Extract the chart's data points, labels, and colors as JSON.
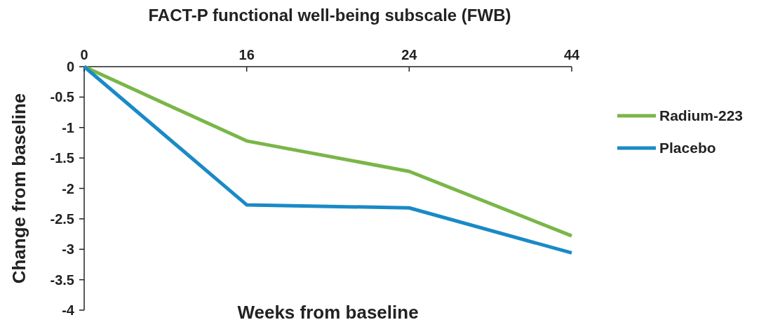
{
  "chart_data": {
    "type": "line",
    "title": "FACT-P functional well-being subscale (FWB)",
    "xlabel": "Weeks from baseline",
    "ylabel": "Change from baseline",
    "categories": [
      "0",
      "16",
      "24",
      "44"
    ],
    "series": [
      {
        "name": "Radium-223",
        "color": "#7ab648",
        "values": [
          0,
          -1.22,
          -1.72,
          -2.78
        ]
      },
      {
        "name": "Placebo",
        "color": "#1a8ac6",
        "values": [
          0,
          -2.27,
          -2.32,
          -3.06
        ]
      }
    ],
    "ylim": [
      -4,
      0
    ],
    "yticks": [
      0,
      -0.5,
      -1,
      -1.5,
      -2,
      -2.5,
      -3,
      -3.5,
      -4
    ],
    "grid": false,
    "legend": "right",
    "marker": "none",
    "line_style": "solid"
  }
}
